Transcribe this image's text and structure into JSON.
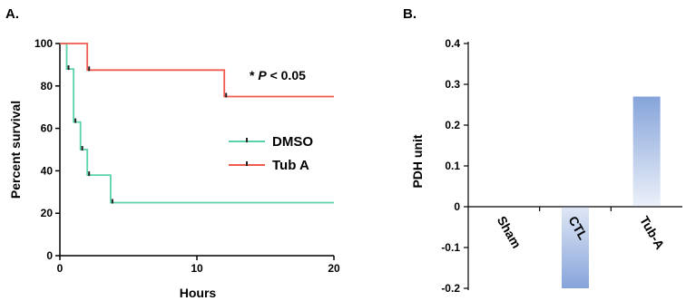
{
  "chart_data": [
    {
      "panel": "A.",
      "type": "line",
      "step": true,
      "xlabel": "Hours",
      "ylabel": "Percent survival",
      "xlim": [
        0,
        20
      ],
      "ylim": [
        0,
        100
      ],
      "xticks": [
        0,
        10,
        20
      ],
      "yticks": [
        0,
        20,
        40,
        60,
        80,
        100
      ],
      "annotation": {
        "prefix": "* ",
        "italic": "P",
        "suffix": " < 0.05"
      },
      "legend_position": "center-right",
      "series": [
        {
          "name": "DMSO",
          "color": "#5ad3a8",
          "points": [
            [
              0,
              100
            ],
            [
              0.5,
              100
            ],
            [
              0.5,
              88
            ],
            [
              1.0,
              88
            ],
            [
              1.0,
              63
            ],
            [
              1.5,
              63
            ],
            [
              1.5,
              50
            ],
            [
              2.0,
              50
            ],
            [
              2.0,
              38
            ],
            [
              3.7,
              38
            ],
            [
              3.7,
              25
            ],
            [
              20,
              25
            ]
          ],
          "censor_marks": [
            [
              0.5,
              88
            ],
            [
              1.0,
              63
            ],
            [
              1.5,
              50
            ],
            [
              2.0,
              38
            ],
            [
              3.7,
              25
            ]
          ]
        },
        {
          "name": "Tub A",
          "color": "#ef5b4f",
          "points": [
            [
              0,
              100
            ],
            [
              2.0,
              100
            ],
            [
              2.0,
              87.5
            ],
            [
              12.0,
              87.5
            ],
            [
              12.0,
              75
            ],
            [
              20,
              75
            ]
          ],
          "censor_marks": [
            [
              2.0,
              87.5
            ],
            [
              12.0,
              75
            ]
          ]
        }
      ]
    },
    {
      "panel": "B.",
      "type": "bar",
      "ylabel": "PDH unit",
      "categories": [
        "Sham",
        "CTL",
        "Tub-A"
      ],
      "values": [
        0,
        -0.2,
        0.27
      ],
      "ylim": [
        -0.2,
        0.4
      ],
      "yticks": [
        -0.2,
        -0.1,
        0,
        0.1,
        0.2,
        0.3,
        0.4
      ],
      "ytick_labels": [
        "-0.2",
        "-0.1",
        "0",
        "0.1",
        "0.2",
        "0.3",
        "0.4"
      ],
      "bar_color": "#7f9fd8"
    }
  ]
}
